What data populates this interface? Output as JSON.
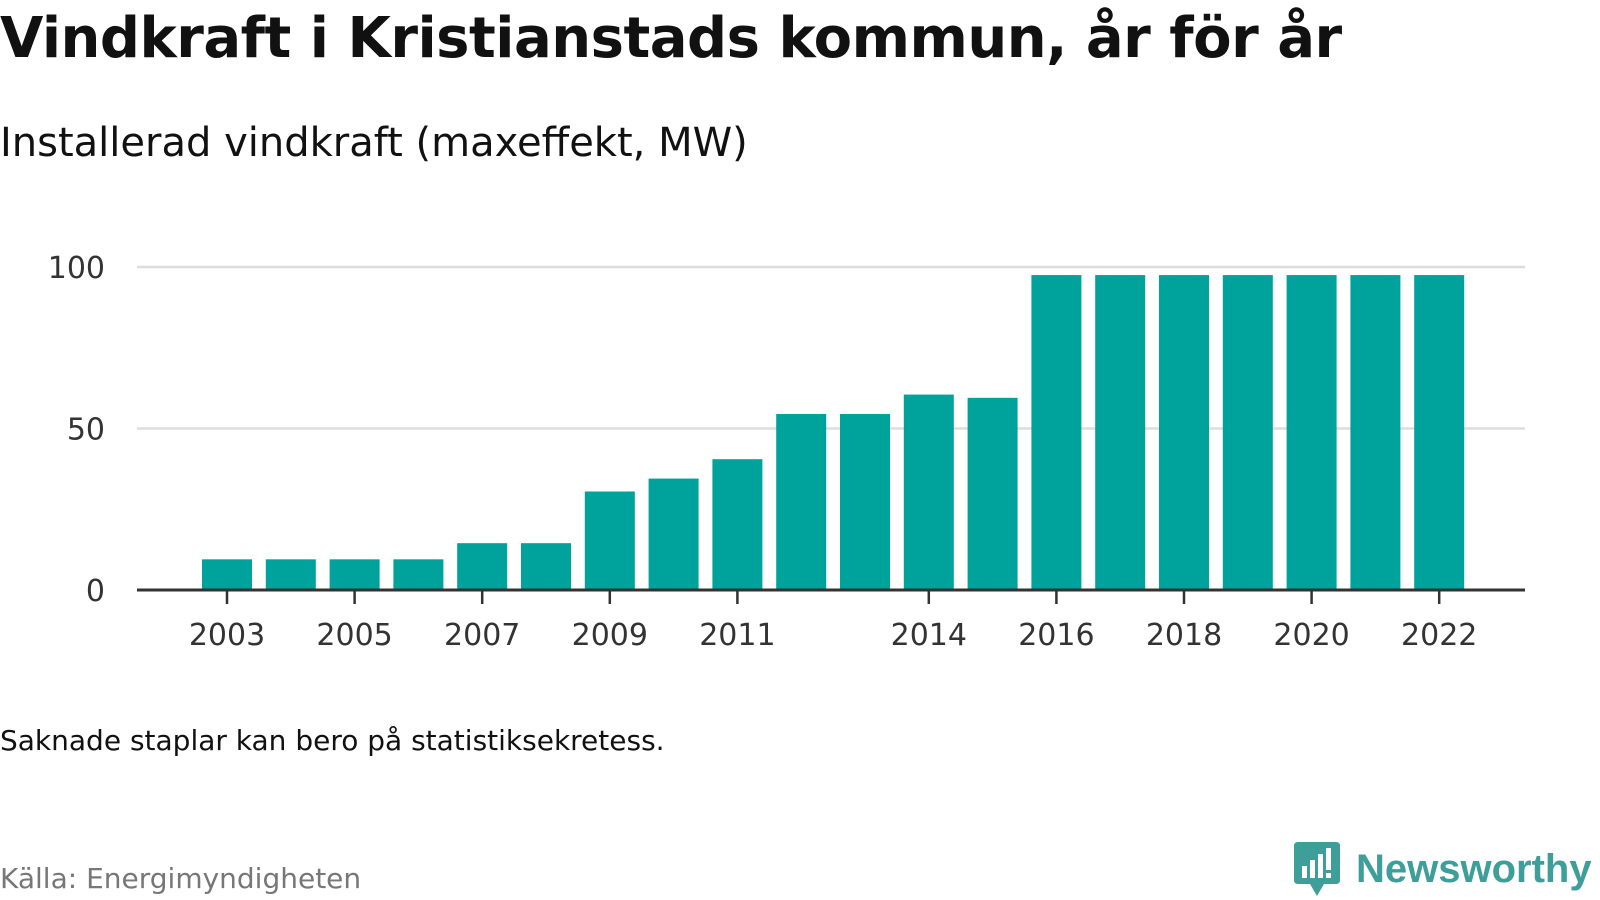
{
  "title": "Vindkraft i Kristianstads kommun, år för år",
  "subtitle": "Installerad vindkraft (maxeffekt, MW)",
  "note": "Saknade staplar kan bero på statistiksekretess.",
  "source": "Källa: Energimyndigheten",
  "brand": {
    "name": "Newsworthy",
    "logo_icon": "bar-chart-speech-bubble-icon"
  },
  "colors": {
    "bar": "#00a39b",
    "grid": "#dddddd",
    "axis": "#333333",
    "brand": "#3e9f9a"
  },
  "chart_data": {
    "type": "bar",
    "title": "Vindkraft i Kristianstads kommun, år för år",
    "subtitle": "Installerad vindkraft (maxeffekt, MW)",
    "xlabel": "",
    "ylabel": "",
    "categories": [
      2003,
      2004,
      2005,
      2006,
      2007,
      2008,
      2009,
      2010,
      2011,
      2012,
      2013,
      2014,
      2015,
      2016,
      2017,
      2018,
      2019,
      2020,
      2021,
      2022
    ],
    "values": [
      9.5,
      9.5,
      9.5,
      9.5,
      14.5,
      14.5,
      30.5,
      34.5,
      40.5,
      54.5,
      54.5,
      60.5,
      59.5,
      97.5,
      97.5,
      97.5,
      97.5,
      97.5,
      97.5,
      97.5
    ],
    "x_tick_labels": [
      "2003",
      "2005",
      "2007",
      "2009",
      "2011",
      "2014",
      "2016",
      "2018",
      "2020",
      "2022"
    ],
    "y_ticks": [
      0,
      50,
      100
    ],
    "ylim": [
      0,
      100
    ],
    "grid": true,
    "legend": "none"
  }
}
